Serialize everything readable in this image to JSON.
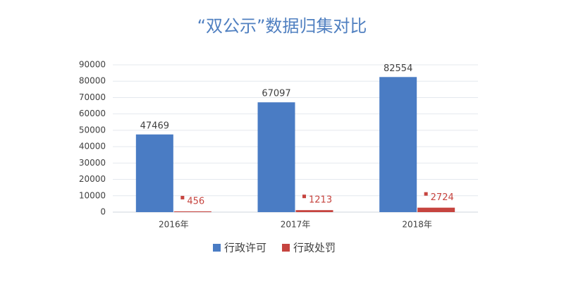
{
  "chart_data": {
    "type": "bar",
    "title": "“双公示”数据归集对比",
    "categories": [
      "2016年",
      "2017年",
      "2018年"
    ],
    "series": [
      {
        "name": "行政许可",
        "color": "#4a7cc4",
        "values": [
          47469,
          67097,
          82554
        ]
      },
      {
        "name": "行政处罚",
        "color": "#c6443f",
        "values": [
          456,
          1213,
          2724
        ]
      }
    ],
    "ylim": [
      0,
      90000
    ],
    "yticks": [
      0,
      10000,
      20000,
      30000,
      40000,
      50000,
      60000,
      70000,
      80000,
      90000
    ],
    "grid": true,
    "legend": "bottom"
  }
}
